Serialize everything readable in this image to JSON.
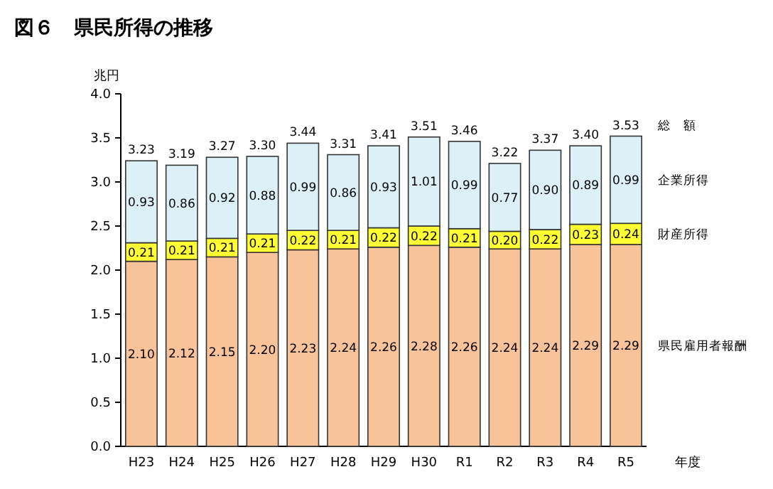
{
  "chart_data": {
    "type": "bar",
    "title": "図６　県民所得の推移",
    "ylabel": "兆円",
    "xlabel": "年度",
    "stacked": true,
    "legend": "right",
    "categories": [
      "H23",
      "H24",
      "H25",
      "H26",
      "H27",
      "H28",
      "H29",
      "H30",
      "R1",
      "R2",
      "R3",
      "R4",
      "R5"
    ],
    "series": [
      {
        "name": "県民雇用者報酬",
        "color": "#f9c39a",
        "values": [
          2.1,
          2.12,
          2.15,
          2.2,
          2.23,
          2.24,
          2.26,
          2.28,
          2.26,
          2.24,
          2.24,
          2.29,
          2.29
        ],
        "value_labels": [
          "2.10",
          "2.12",
          "2.15",
          "2.20",
          "2.23",
          "2.24",
          "2.26",
          "2.28",
          "2.26",
          "2.24",
          "2.24",
          "2.29",
          "2.29"
        ]
      },
      {
        "name": "財産所得",
        "color": "#ffff33",
        "values": [
          0.21,
          0.21,
          0.21,
          0.21,
          0.22,
          0.21,
          0.22,
          0.22,
          0.21,
          0.2,
          0.22,
          0.23,
          0.24
        ],
        "value_labels": [
          "0.21",
          "0.21",
          "0.21",
          "0.21",
          "0.22",
          "0.21",
          "0.22",
          "0.22",
          "0.21",
          "0.20",
          "0.22",
          "0.23",
          "0.24"
        ]
      },
      {
        "name": "企業所得",
        "color": "#dcf0f8",
        "values": [
          0.93,
          0.86,
          0.92,
          0.88,
          0.99,
          0.86,
          0.93,
          1.01,
          0.99,
          0.77,
          0.9,
          0.89,
          0.99
        ],
        "value_labels": [
          "0.93",
          "0.86",
          "0.92",
          "0.88",
          "0.99",
          "0.86",
          "0.93",
          "1.01",
          "0.99",
          "0.77",
          "0.90",
          "0.89",
          "0.99"
        ]
      }
    ],
    "totals": [
      "3.23",
      "3.19",
      "3.27",
      "3.30",
      "3.44",
      "3.31",
      "3.41",
      "3.51",
      "3.46",
      "3.22",
      "3.37",
      "3.40",
      "3.53"
    ],
    "annotations": [
      "総　額"
    ],
    "ylim": [
      0,
      4
    ],
    "yticks": [
      {
        "value": 0,
        "label": "0.0"
      },
      {
        "value": 0.5,
        "label": "0.5"
      },
      {
        "value": 1,
        "label": "1.0"
      },
      {
        "value": 1.5,
        "label": "1.5"
      },
      {
        "value": 2,
        "label": "2.0"
      },
      {
        "value": 2.5,
        "label": "2.5"
      },
      {
        "value": 3,
        "label": "3.0"
      },
      {
        "value": 3.5,
        "label": "3.5"
      },
      {
        "value": 4,
        "label": "4.0"
      }
    ],
    "grid": false
  }
}
